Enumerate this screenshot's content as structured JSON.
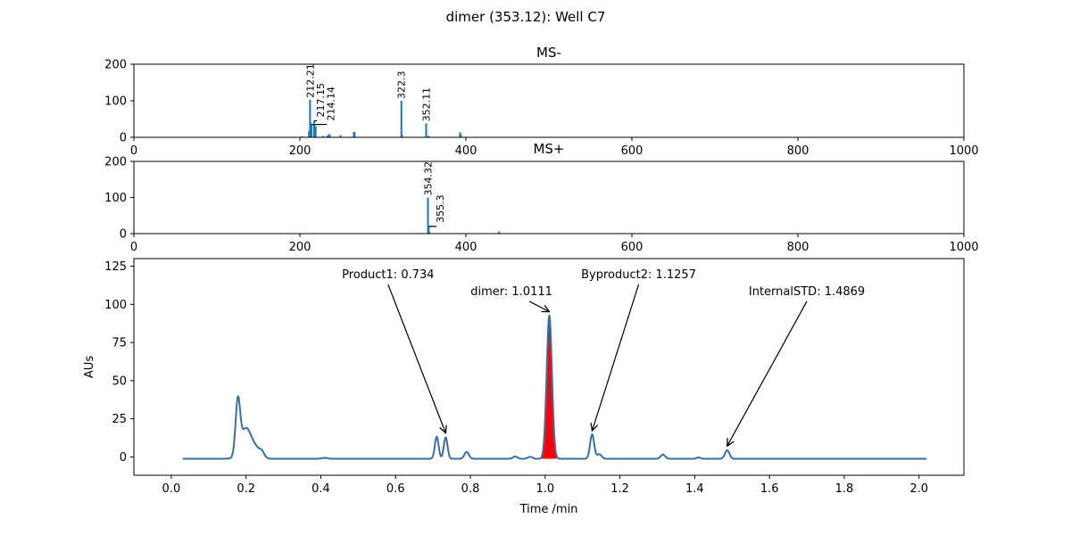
{
  "figure_title": "dimer (353.12): Well C7",
  "chart_data": [
    {
      "type": "bar",
      "title": "MS-",
      "xlim": [
        0,
        1000
      ],
      "ylim": [
        0,
        200
      ],
      "xticks": [
        0,
        200,
        400,
        600,
        800,
        1000
      ],
      "yticks": [
        0,
        100,
        200
      ],
      "color": "#1f77b4",
      "peaks": [
        {
          "mz": 203,
          "intensity": 3
        },
        {
          "mz": 211,
          "intensity": 17
        },
        {
          "mz": 212.21,
          "intensity": 103
        },
        {
          "mz": 213,
          "intensity": 40
        },
        {
          "mz": 214.14,
          "intensity": 35
        },
        {
          "mz": 217.15,
          "intensity": 45
        },
        {
          "mz": 219,
          "intensity": 30
        },
        {
          "mz": 228,
          "intensity": 4
        },
        {
          "mz": 233,
          "intensity": 4
        },
        {
          "mz": 235,
          "intensity": 9
        },
        {
          "mz": 236,
          "intensity": 7
        },
        {
          "mz": 249,
          "intensity": 6
        },
        {
          "mz": 265,
          "intensity": 15
        },
        {
          "mz": 266,
          "intensity": 14
        },
        {
          "mz": 322.3,
          "intensity": 100
        },
        {
          "mz": 323,
          "intensity": 8
        },
        {
          "mz": 352.11,
          "intensity": 38
        },
        {
          "mz": 355,
          "intensity": 4
        },
        {
          "mz": 393,
          "intensity": 14
        },
        {
          "mz": 394,
          "intensity": 8
        }
      ],
      "annotations": [
        {
          "label": "212.21",
          "mz": 212.21,
          "intensity": 103,
          "text_mz": 212.21
        },
        {
          "label": "217.15",
          "mz": 217.15,
          "intensity": 45,
          "text_mz": 225
        },
        {
          "label": "214.14",
          "mz": 214.14,
          "intensity": 35,
          "text_mz": 237
        },
        {
          "label": "322.3",
          "mz": 322.3,
          "intensity": 100,
          "text_mz": 322.3
        },
        {
          "label": "352.11",
          "mz": 352.11,
          "intensity": 38,
          "text_mz": 352.11
        }
      ]
    },
    {
      "type": "bar",
      "title": "MS+",
      "xlim": [
        0,
        1000
      ],
      "ylim": [
        0,
        200
      ],
      "xticks": [
        0,
        200,
        400,
        600,
        800,
        1000
      ],
      "yticks": [
        0,
        100,
        200
      ],
      "color": "#1f77b4",
      "peaks": [
        {
          "mz": 354.32,
          "intensity": 100
        },
        {
          "mz": 355.3,
          "intensity": 20
        },
        {
          "mz": 356,
          "intensity": 5
        },
        {
          "mz": 440,
          "intensity": 6
        }
      ],
      "annotations": [
        {
          "label": "354.32",
          "mz": 354.32,
          "intensity": 100,
          "text_mz": 354.32
        },
        {
          "label": "355.3",
          "mz": 355.3,
          "intensity": 20,
          "text_mz": 369
        }
      ]
    },
    {
      "type": "line",
      "title": "",
      "xlabel": "Time /min",
      "ylabel": "AUs",
      "xlim": [
        -0.1,
        2.12
      ],
      "ylim": [
        -12,
        130
      ],
      "xticks": [
        0.0,
        0.2,
        0.4,
        0.6,
        0.8,
        1.0,
        1.2,
        1.4,
        1.6,
        1.8,
        2.0
      ],
      "xtick_labels": [
        "0.0",
        "0.2",
        "0.4",
        "0.6",
        "0.8",
        "1.0",
        "1.2",
        "1.4",
        "1.6",
        "1.8",
        "2.0"
      ],
      "yticks": [
        0,
        25,
        50,
        75,
        100,
        125
      ],
      "line_color": "#3a6fa3",
      "fill_color": "#ff0000",
      "baseline": -1.2,
      "x_start": 0.03,
      "x_end": 2.02,
      "peaks": [
        {
          "center": 0.178,
          "height": 34,
          "width": 0.006
        },
        {
          "center": 0.2,
          "height": 20,
          "width": 0.015
        },
        {
          "center": 0.23,
          "height": 5,
          "width": 0.012
        },
        {
          "center": 0.243,
          "height": 2.5,
          "width": 0.006
        },
        {
          "center": 0.41,
          "height": 0.6,
          "width": 0.008
        },
        {
          "center": 0.71,
          "height": 14.5,
          "width": 0.005
        },
        {
          "center": 0.734,
          "height": 14,
          "width": 0.005
        },
        {
          "center": 0.79,
          "height": 4.5,
          "width": 0.006
        },
        {
          "center": 0.92,
          "height": 1.5,
          "width": 0.006
        },
        {
          "center": 0.96,
          "height": 1.3,
          "width": 0.006
        },
        {
          "center": 1.0111,
          "height": 94,
          "width": 0.007
        },
        {
          "center": 1.1257,
          "height": 16,
          "width": 0.0055
        },
        {
          "center": 1.145,
          "height": 3,
          "width": 0.006
        },
        {
          "center": 1.315,
          "height": 2.8,
          "width": 0.006
        },
        {
          "center": 1.41,
          "height": 0.9,
          "width": 0.005
        },
        {
          "center": 1.4869,
          "height": 5.6,
          "width": 0.006
        }
      ],
      "filled_peak": {
        "x_from": 0.99,
        "x_to": 1.03
      },
      "annotations": [
        {
          "label": "Product1: 0.734",
          "x": 0.734,
          "y": 14.5,
          "text_x": 0.58,
          "text_y": 120
        },
        {
          "label": "dimer: 1.0111",
          "x": 1.0111,
          "y": 94,
          "text_x": 0.91,
          "text_y": 109
        },
        {
          "label": "Byproduct2: 1.1257",
          "x": 1.1257,
          "y": 16,
          "text_x": 1.25,
          "text_y": 120
        },
        {
          "label": "InternalSTD: 1.4869",
          "x": 1.4869,
          "y": 6,
          "text_x": 1.7,
          "text_y": 109
        }
      ]
    }
  ]
}
